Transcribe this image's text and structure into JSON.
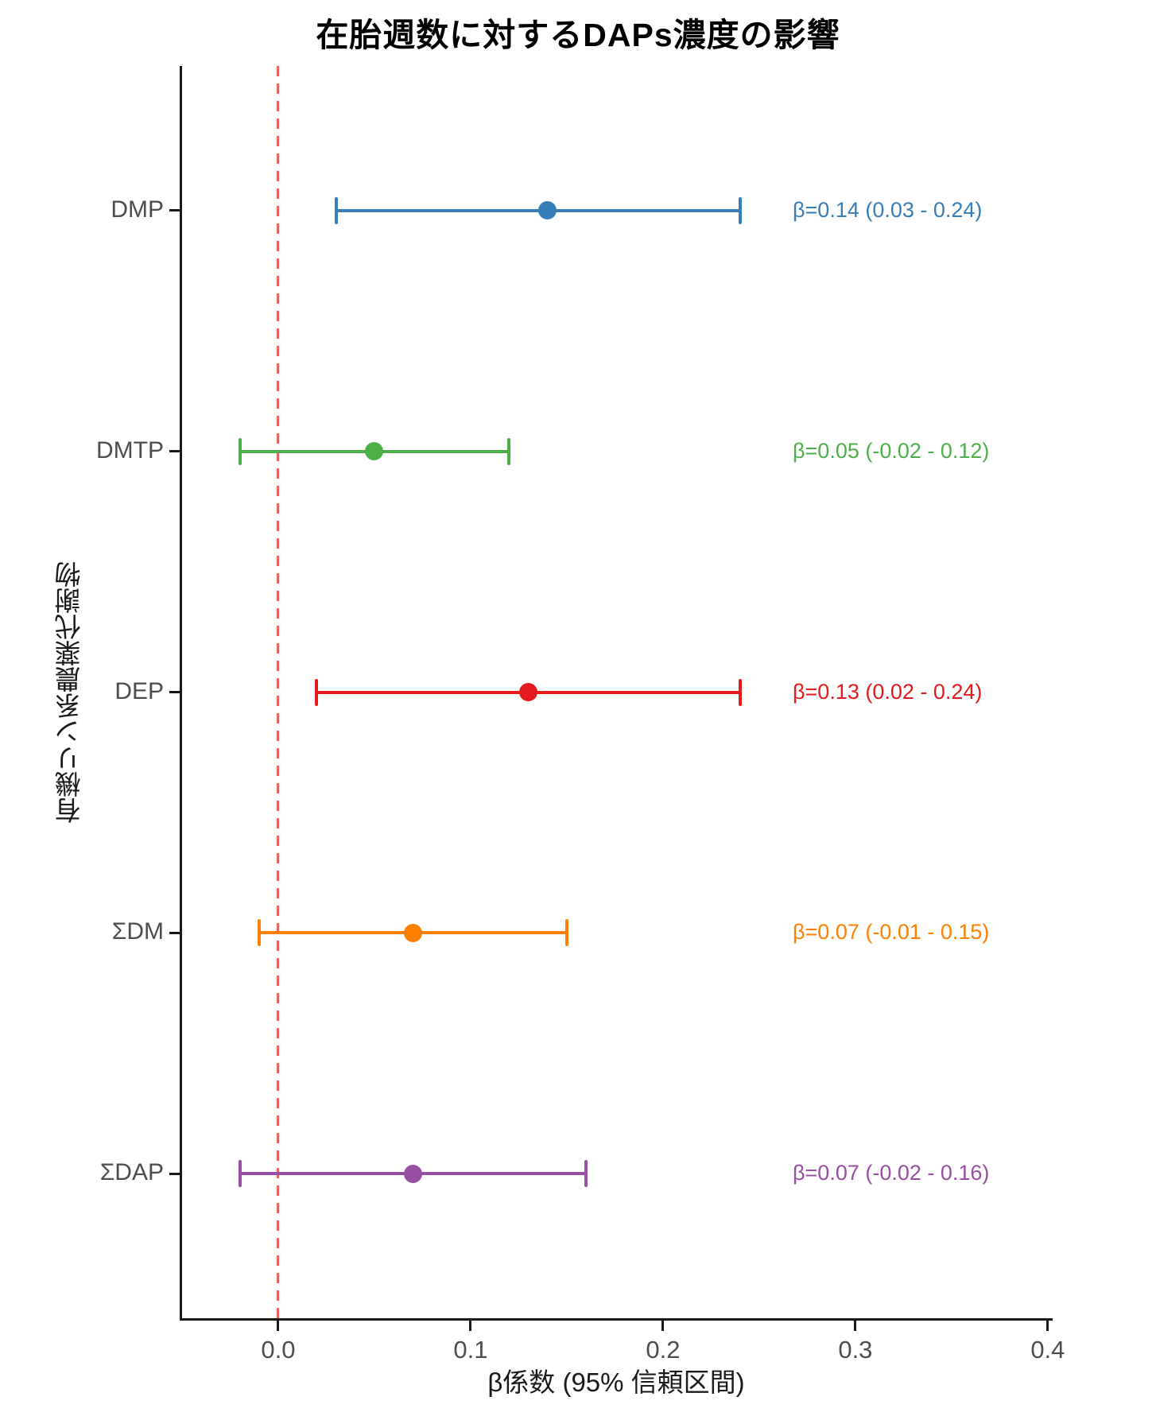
{
  "title": "在胎週数に対するDAPs濃度の影響",
  "chart_data": {
    "type": "scatter",
    "variant": "forest-plot",
    "title": "在胎週数に対するDAPs濃度の影響",
    "xlabel": "β係数 (95% 信頼区間)",
    "ylabel": "有機リン系農薬代謝物",
    "categories": [
      "DMP",
      "DMTP",
      "DEP",
      "ΣDM",
      "ΣDAP"
    ],
    "series": [
      {
        "name": "DMP",
        "beta": 0.14,
        "ci_low": 0.03,
        "ci_high": 0.24,
        "color": "#377eb8",
        "annotation": "β=0.14 (0.03 - 0.24)"
      },
      {
        "name": "DMTP",
        "beta": 0.05,
        "ci_low": -0.02,
        "ci_high": 0.12,
        "color": "#4daf4a",
        "annotation": "β=0.05 (-0.02 - 0.12)"
      },
      {
        "name": "DEP",
        "beta": 0.13,
        "ci_low": 0.02,
        "ci_high": 0.24,
        "color": "#e41a1c",
        "annotation": "β=0.13 (0.02 - 0.24)"
      },
      {
        "name": "ΣDM",
        "beta": 0.07,
        "ci_low": -0.01,
        "ci_high": 0.15,
        "color": "#ff7f00",
        "annotation": "β=0.07 (-0.01 - 0.15)"
      },
      {
        "name": "ΣDAP",
        "beta": 0.07,
        "ci_low": -0.02,
        "ci_high": 0.16,
        "color": "#984ea3",
        "annotation": "β=0.07 (-0.02 - 0.16)"
      }
    ],
    "x_tick_labels": [
      "0.0",
      "0.1",
      "0.2",
      "0.3",
      "0.4"
    ],
    "x_tick_values": [
      0.0,
      0.1,
      0.2,
      0.3,
      0.4
    ],
    "xlim": [
      -0.0504,
      0.4017
    ],
    "reference_line": {
      "x": 0.0,
      "style": "dashed",
      "color": "#f4605c"
    },
    "grid": false,
    "legend": false
  },
  "colors": {
    "axis": "#1a1a1a",
    "tick_label": "#4d4d4d",
    "title": "#000000",
    "background": "#ffffff"
  }
}
